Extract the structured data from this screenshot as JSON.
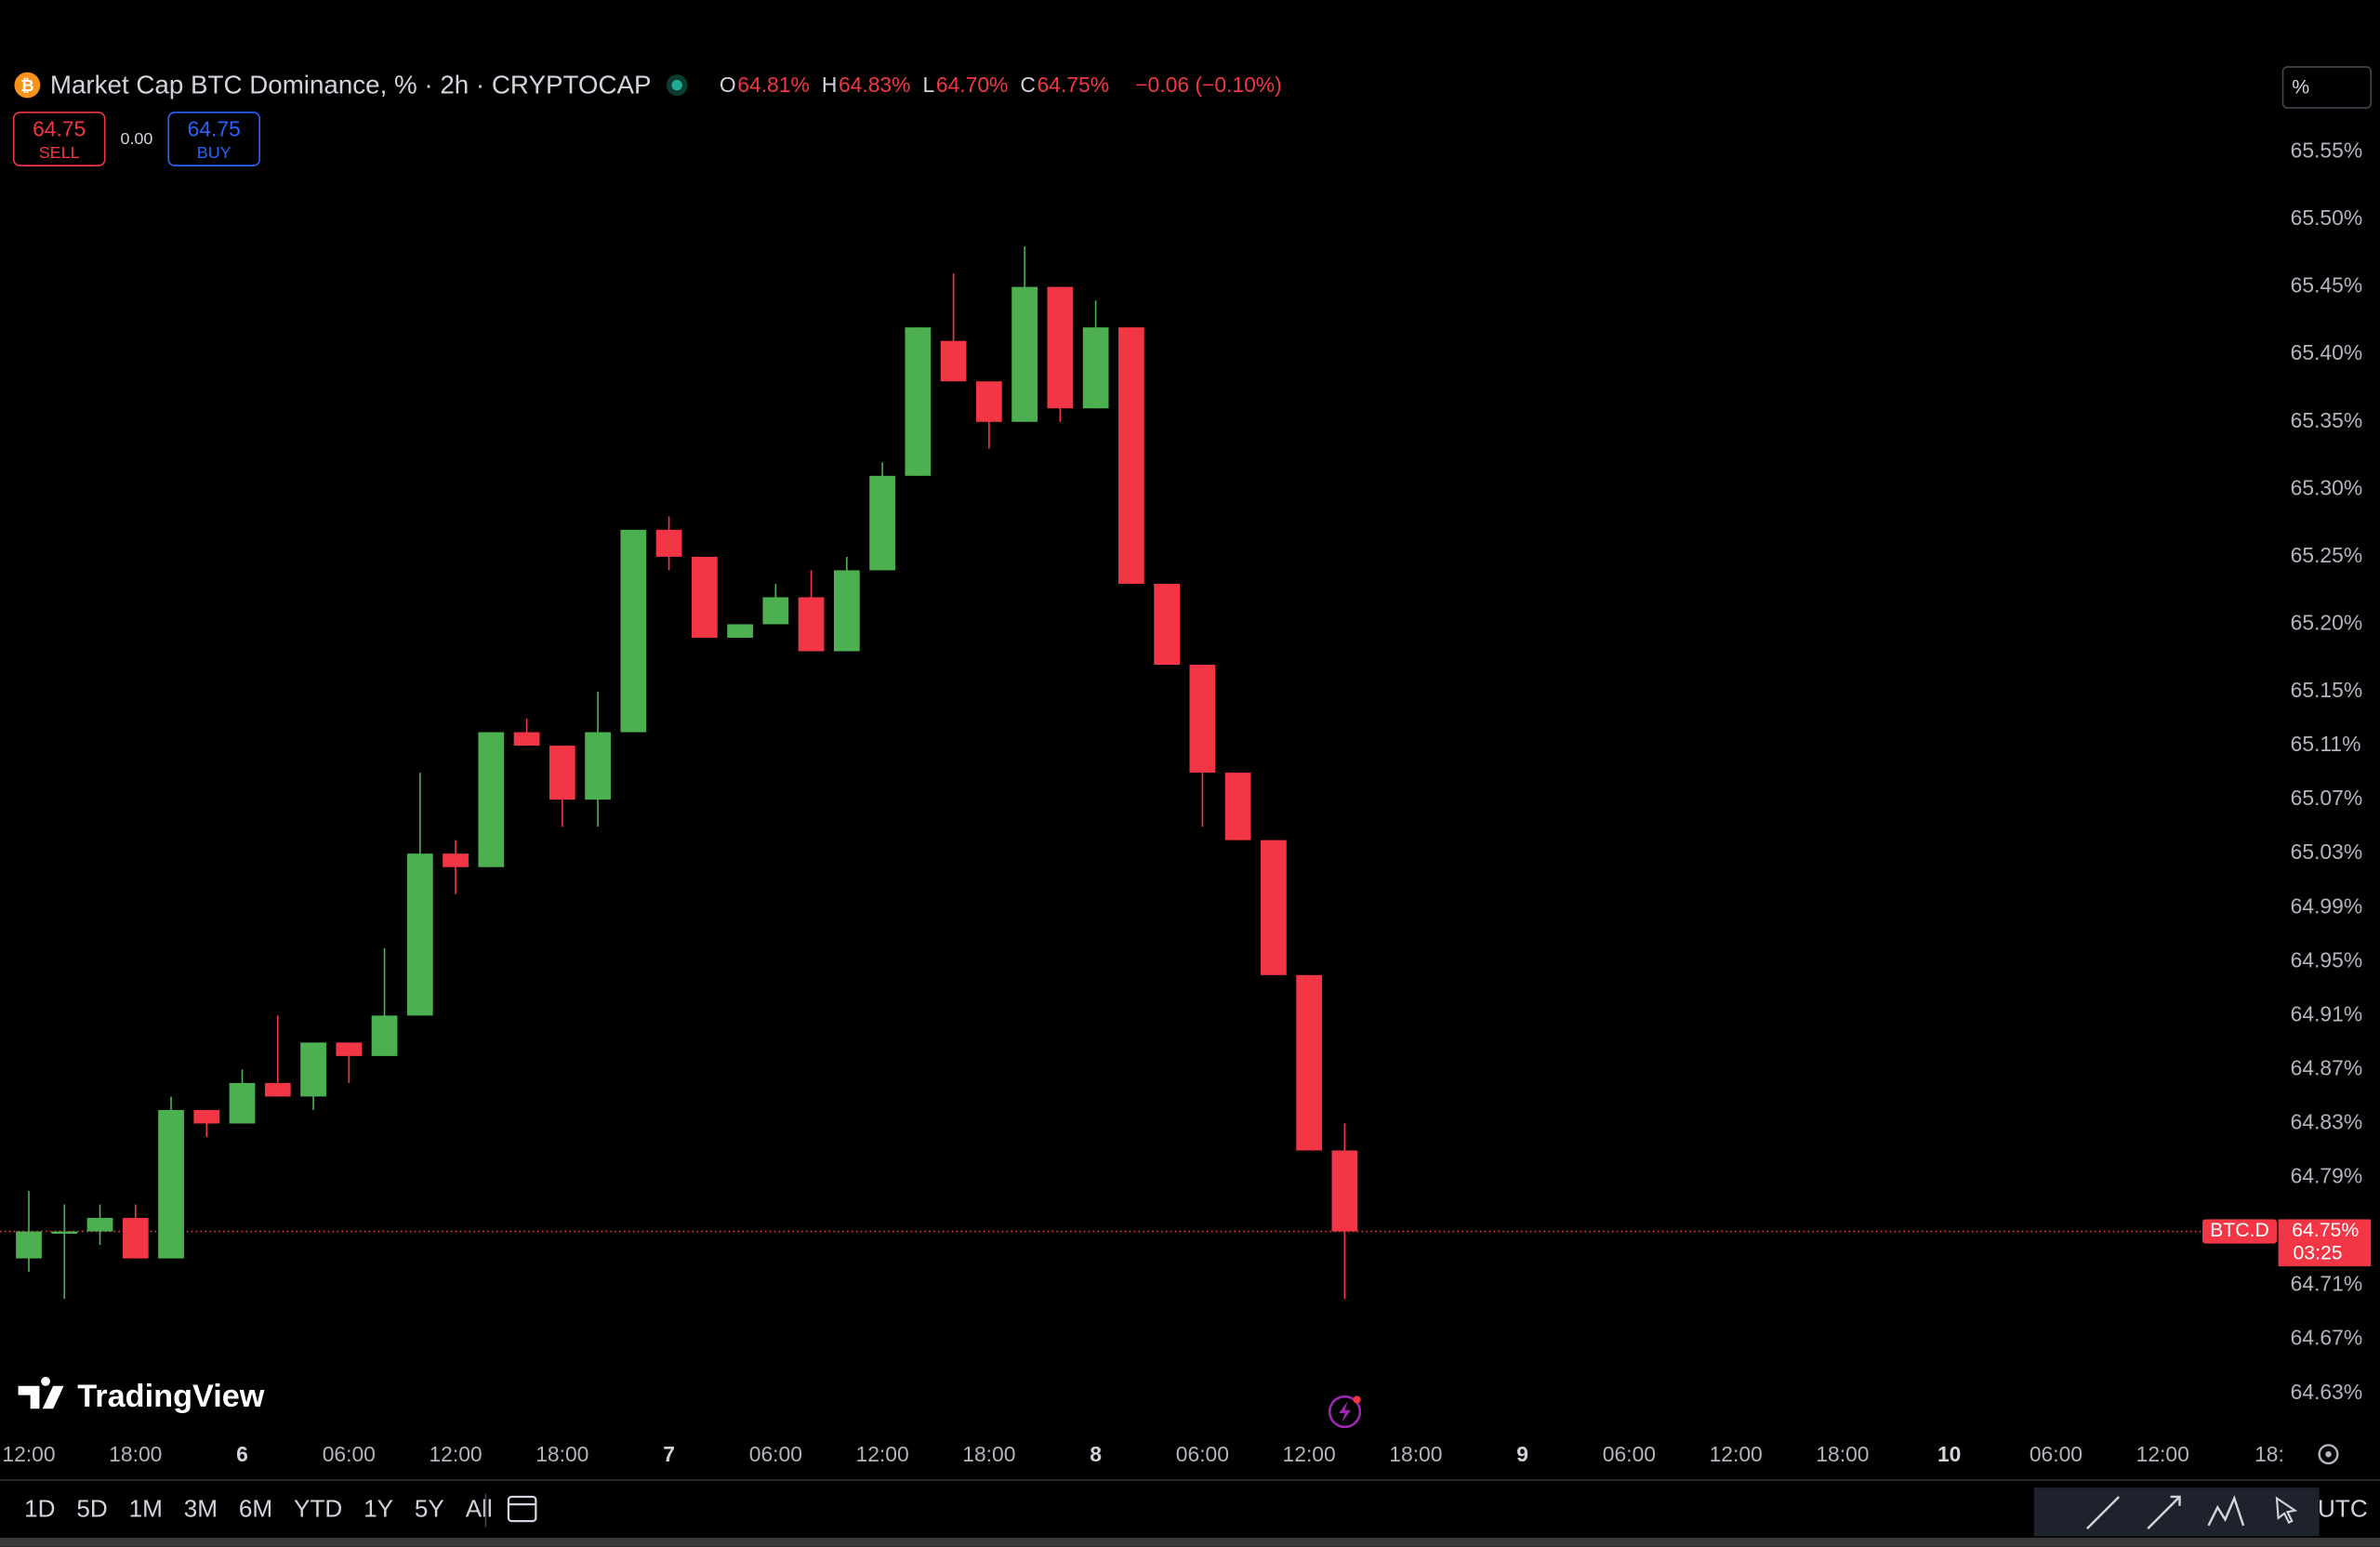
{
  "chart_data": {
    "type": "candlestick",
    "title": "Market Cap BTC Dominance, % · 2h · CRYPTOCAP",
    "legend": [
      {
        "key": "O",
        "value": "64.81%"
      },
      {
        "key": "H",
        "value": "64.83%"
      },
      {
        "key": "L",
        "value": "64.70%"
      },
      {
        "key": "C",
        "value": "64.75%"
      }
    ],
    "change": "−0.06 (−0.10%)",
    "up_color": "#4caf50",
    "down_color": "#f23645",
    "open": [
      64.73,
      64.75,
      64.75,
      64.76,
      64.73,
      64.84,
      64.83,
      64.86,
      64.85,
      64.89,
      64.88,
      64.91,
      65.03,
      65.02,
      65.12,
      65.11,
      65.07,
      65.12,
      65.27,
      65.25,
      65.19,
      65.2,
      65.22,
      65.18,
      65.24,
      65.31,
      65.41,
      65.38,
      65.35,
      65.45,
      65.36,
      65.42,
      65.23,
      65.17,
      65.09,
      65.04,
      64.94,
      64.81
    ],
    "high": [
      64.78,
      64.77,
      64.77,
      64.77,
      64.85,
      64.84,
      64.87,
      64.91,
      64.89,
      64.89,
      64.96,
      65.09,
      65.04,
      65.12,
      65.13,
      65.11,
      65.15,
      65.27,
      65.28,
      65.25,
      65.2,
      65.23,
      65.24,
      65.25,
      65.32,
      65.42,
      65.46,
      65.38,
      65.48,
      65.45,
      65.44,
      65.42,
      65.23,
      65.17,
      65.09,
      65.04,
      64.94,
      64.83
    ],
    "low": [
      64.72,
      64.7,
      64.74,
      64.73,
      64.73,
      64.82,
      64.83,
      64.85,
      64.84,
      64.86,
      64.88,
      64.91,
      65.0,
      65.02,
      65.11,
      65.05,
      65.05,
      65.12,
      65.24,
      65.19,
      65.19,
      65.2,
      65.18,
      65.18,
      65.24,
      65.31,
      65.38,
      65.33,
      65.35,
      65.35,
      65.36,
      65.23,
      65.17,
      65.05,
      65.04,
      64.94,
      64.81,
      64.7
    ],
    "close": [
      64.75,
      64.75,
      64.76,
      64.73,
      64.84,
      64.83,
      64.86,
      64.85,
      64.89,
      64.88,
      64.91,
      65.03,
      65.02,
      65.12,
      65.11,
      65.07,
      65.12,
      65.27,
      65.25,
      65.19,
      65.2,
      65.22,
      65.18,
      65.24,
      65.31,
      65.42,
      65.38,
      65.35,
      65.45,
      65.36,
      65.42,
      65.23,
      65.17,
      65.09,
      65.04,
      64.94,
      64.81,
      64.75
    ],
    "xtick_labels": [
      "12:00",
      "18:00",
      "6",
      "06:00",
      "12:00",
      "18:00",
      "7",
      "06:00",
      "12:00",
      "18:00",
      "8",
      "06:00",
      "12:00",
      "18:00",
      "9",
      "06:00",
      "12:00",
      "18:00",
      "10",
      "06:00",
      "12:00",
      "18:"
    ],
    "ylim": [
      64.6,
      65.62
    ],
    "yticks": [
      {
        "value": 65.55,
        "label": "65.55%"
      },
      {
        "value": 65.5,
        "label": "65.50%"
      },
      {
        "value": 65.45,
        "label": "65.45%"
      },
      {
        "value": 65.4,
        "label": "65.40%"
      },
      {
        "value": 65.35,
        "label": "65.35%"
      },
      {
        "value": 65.3,
        "label": "65.30%"
      },
      {
        "value": 65.25,
        "label": "65.25%"
      },
      {
        "value": 65.2,
        "label": "65.20%"
      },
      {
        "value": 65.15,
        "label": "65.15%"
      },
      {
        "value": 65.11,
        "label": "65.11%"
      },
      {
        "value": 65.07,
        "label": "65.07%"
      },
      {
        "value": 65.03,
        "label": "65.03%"
      },
      {
        "value": 64.99,
        "label": "64.99%"
      },
      {
        "value": 64.95,
        "label": "64.95%"
      },
      {
        "value": 64.91,
        "label": "64.91%"
      },
      {
        "value": 64.87,
        "label": "64.87%"
      },
      {
        "value": 64.83,
        "label": "64.83%"
      },
      {
        "value": 64.79,
        "label": "64.79%"
      },
      {
        "value": 64.71,
        "label": "64.71%"
      },
      {
        "value": 64.67,
        "label": "64.67%"
      },
      {
        "value": 64.63,
        "label": "64.63%"
      }
    ],
    "grid": false,
    "last_price": {
      "value": 64.75,
      "label": "64.75%"
    },
    "last_price_symbol": "BTC.D",
    "countdown": "03:25",
    "scale_mode": "%"
  },
  "trade": {
    "sell_price": "64.75",
    "sell": "SELL",
    "spread": "0.00",
    "buy_price": "64.75",
    "buy": "BUY"
  },
  "branding": "TradingView",
  "ranges": [
    "1D",
    "5D",
    "1M",
    "3M",
    "6M",
    "YTD",
    "1Y",
    "5Y",
    "All"
  ],
  "timezone": "UTC"
}
